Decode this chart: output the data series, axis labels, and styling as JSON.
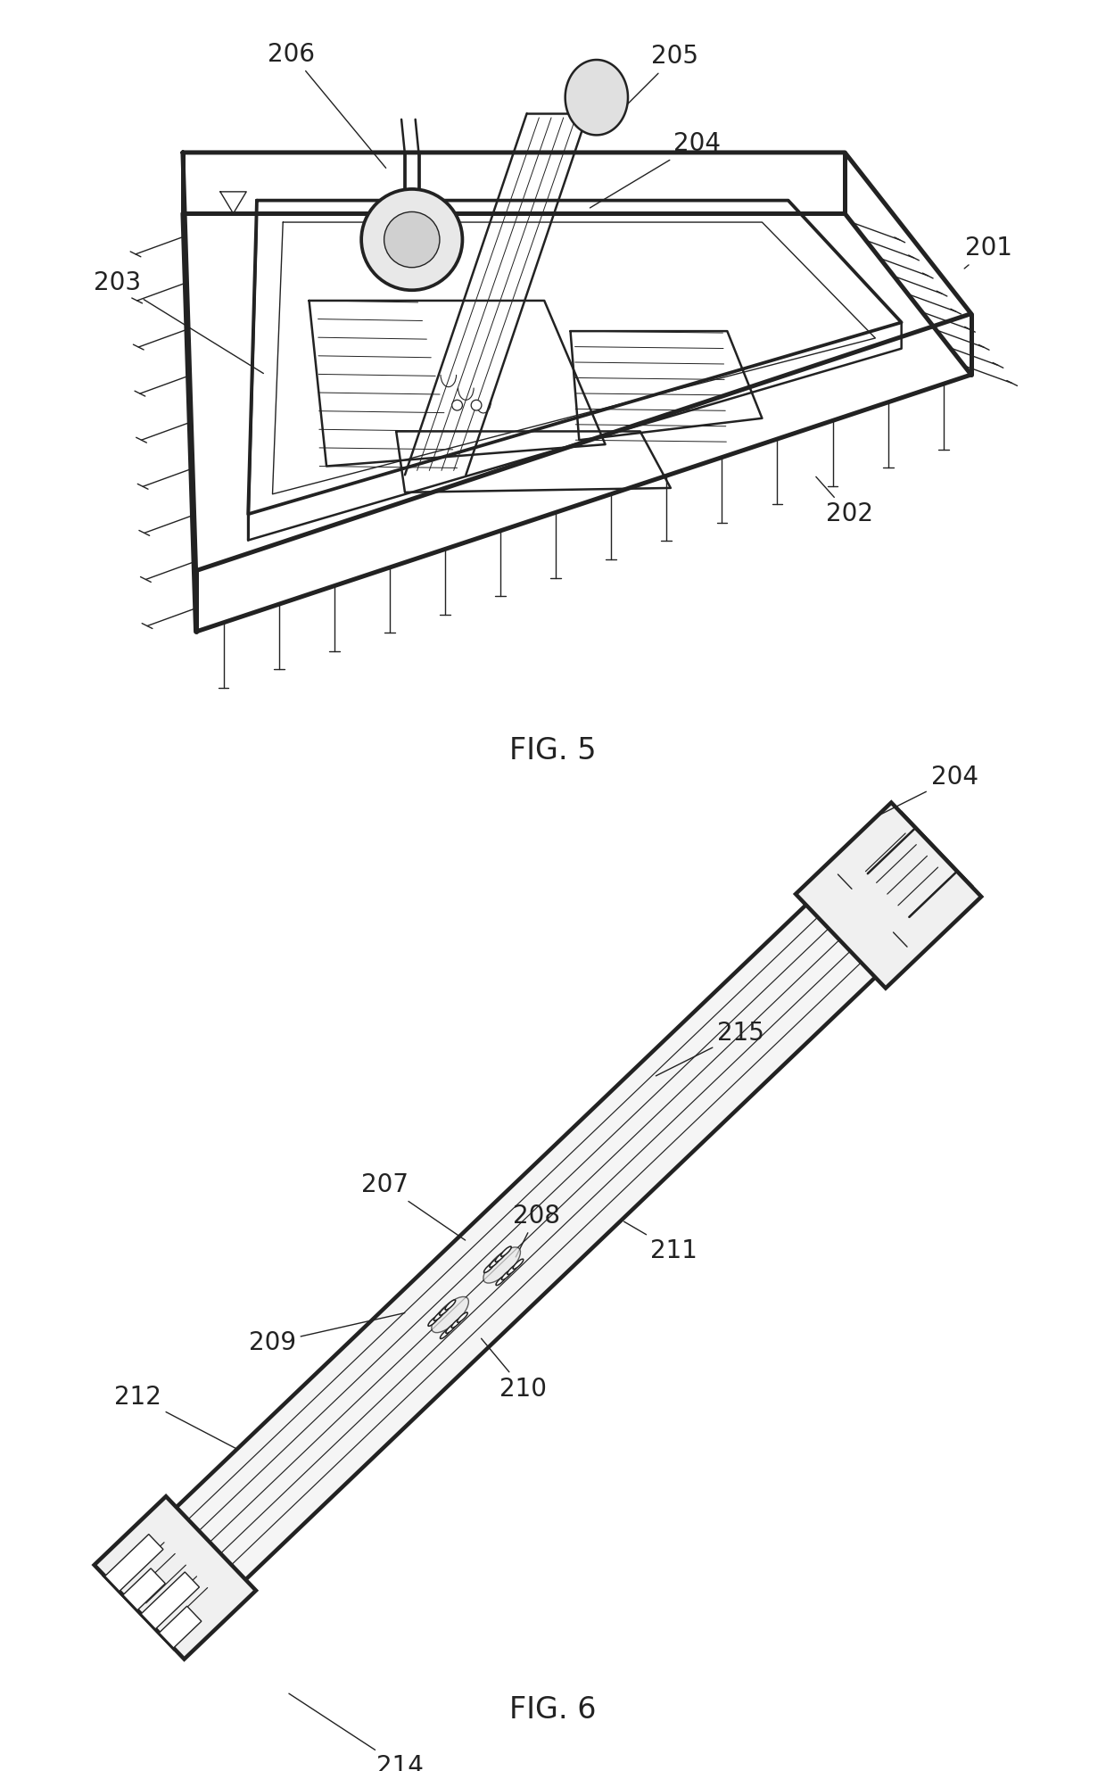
{
  "fig5_label": "FIG. 5",
  "fig6_label": "FIG. 6",
  "bg": "#ffffff",
  "lc": "#222222",
  "lw": 1.8,
  "tlw": 1.0,
  "fs": 20
}
